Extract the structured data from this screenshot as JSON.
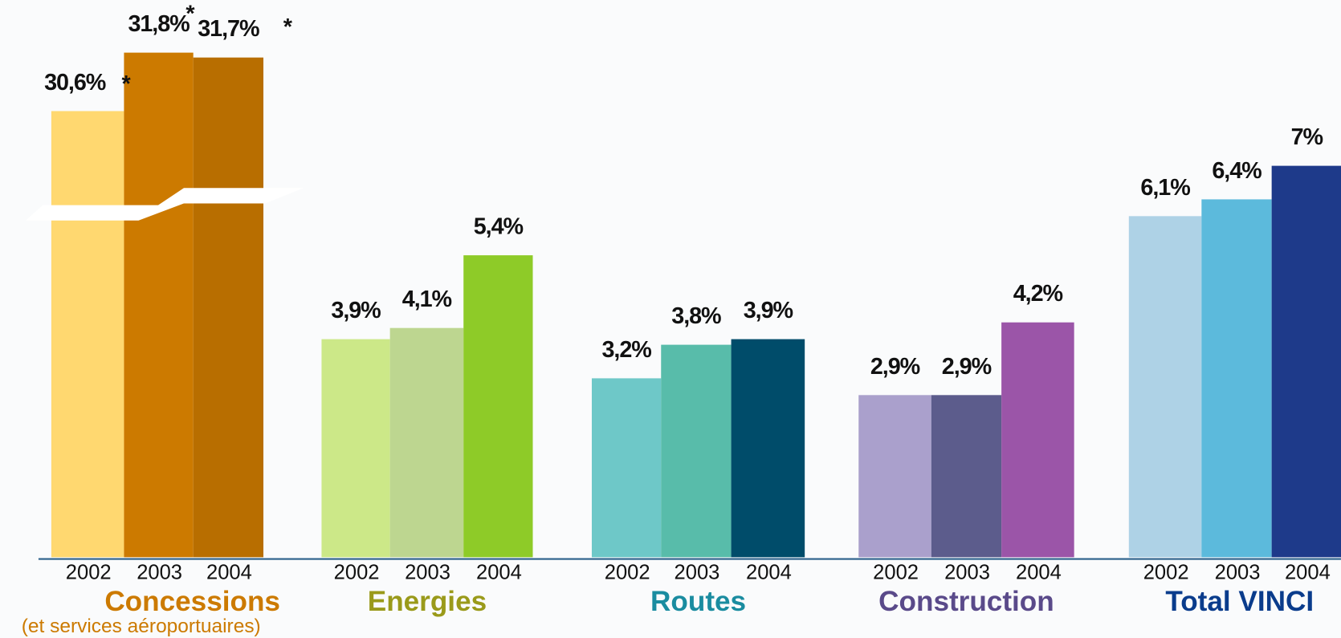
{
  "chart_data": {
    "type": "grouped_bar",
    "groups": [
      {
        "name": "Concessions",
        "subtitle": "(et services aéroportuaires)",
        "name_color": "#cc7a00",
        "broken_axis": true,
        "categories": [
          "2002",
          "2003",
          "2004"
        ],
        "values": [
          30.6,
          31.8,
          31.7
        ],
        "value_labels": [
          "30,6%",
          "31,8%",
          "31,7%"
        ],
        "annotations": [
          "*",
          "*",
          "*"
        ],
        "colors": [
          "#ffd870",
          "#cc7a00",
          "#b86e00"
        ]
      },
      {
        "name": "Energies",
        "name_color": "#9a9a1a",
        "categories": [
          "2002",
          "2003",
          "2004"
        ],
        "values": [
          3.9,
          4.1,
          5.4
        ],
        "value_labels": [
          "3,9%",
          "4,1%",
          "5,4%"
        ],
        "colors": [
          "#cce888",
          "#bdd690",
          "#8ecb28"
        ]
      },
      {
        "name": "Routes",
        "name_color": "#1a8ca0",
        "categories": [
          "2002",
          "2003",
          "2004"
        ],
        "values": [
          3.2,
          3.8,
          3.9
        ],
        "value_labels": [
          "3,2%",
          "3,8%",
          "3,9%"
        ],
        "colors": [
          "#6ec8c8",
          "#58bcaa",
          "#004c6a"
        ]
      },
      {
        "name": "Construction",
        "name_color": "#5a4a8a",
        "categories": [
          "2002",
          "2003",
          "2004"
        ],
        "values": [
          2.9,
          2.9,
          4.2
        ],
        "value_labels": [
          "2,9%",
          "2,9%",
          "4,2%"
        ],
        "colors": [
          "#aaa0cc",
          "#5c5c8c",
          "#9b55a8"
        ]
      },
      {
        "name": "Total VINCI",
        "name_color": "#0a3c8c",
        "categories": [
          "2002",
          "2003",
          "2004"
        ],
        "values": [
          6.1,
          6.4,
          7
        ],
        "value_labels": [
          "6,1%",
          "6,4%",
          "7%"
        ],
        "colors": [
          "#aed2e6",
          "#5cbadc",
          "#1e3a8a"
        ]
      }
    ]
  }
}
